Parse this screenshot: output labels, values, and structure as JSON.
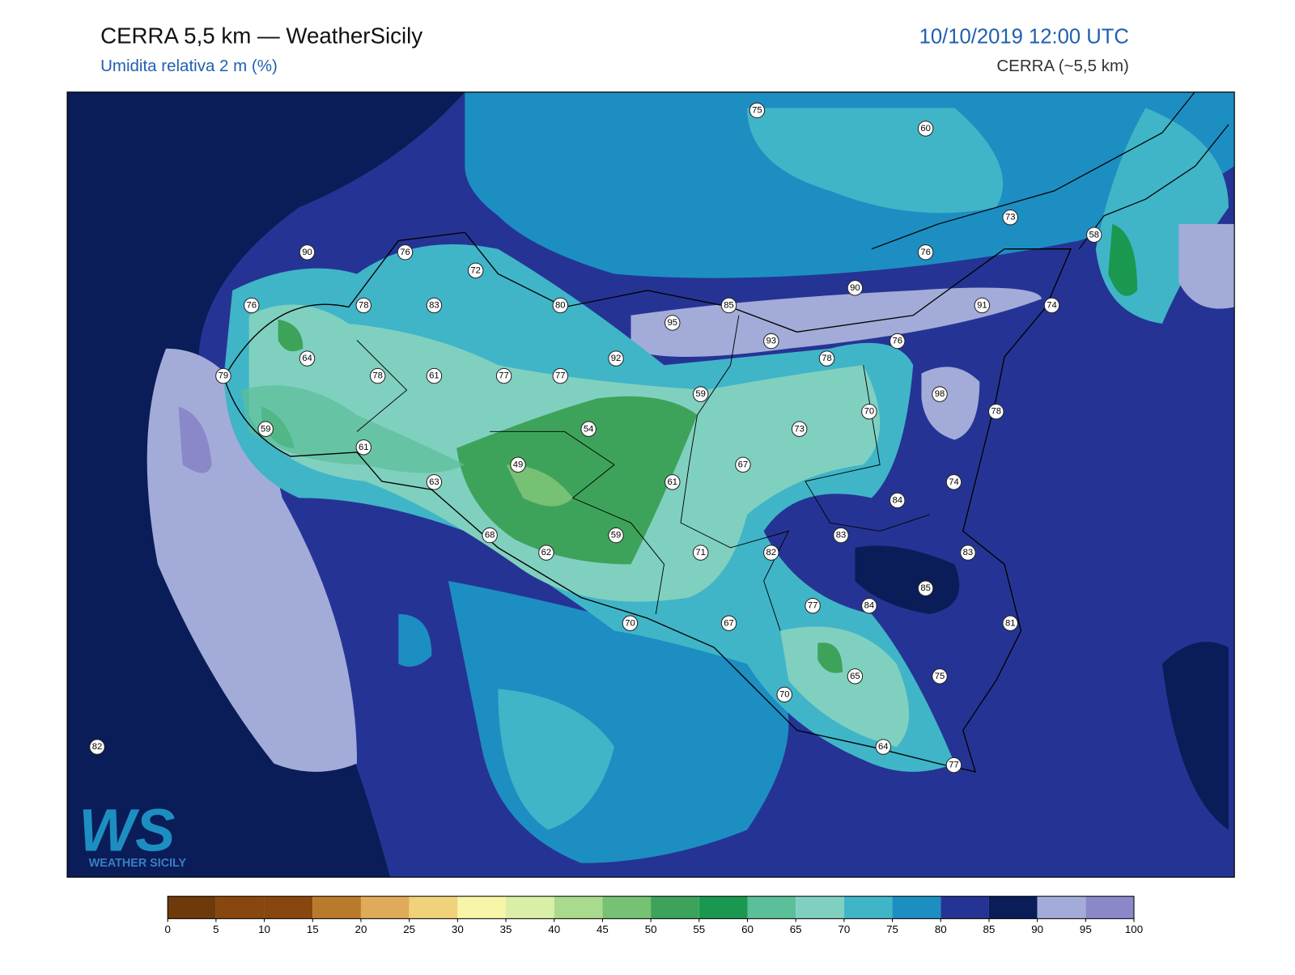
{
  "header": {
    "title": "CERRA 5,5 km — WeatherSicily",
    "subtitle": "Umidita relativa 2 m (%)",
    "datetime": "10/10/2019 12:00 UTC",
    "model": "CERRA (~5,5 km)"
  },
  "map": {
    "points": [
      75,
      60,
      73,
      58,
      90,
      76,
      72,
      76,
      90,
      76,
      78,
      83,
      80,
      85,
      91,
      74,
      95,
      93,
      76,
      92,
      78,
      64,
      79,
      78,
      61,
      77,
      77,
      59,
      98,
      70,
      78,
      59,
      54,
      73,
      61,
      49,
      67,
      63,
      61,
      74,
      84,
      68,
      59,
      83,
      62,
      71,
      82,
      83,
      85,
      77,
      84,
      70,
      67,
      81,
      65,
      75,
      70,
      64,
      77,
      82
    ]
  },
  "colorbar": {
    "ticks": [
      0,
      5,
      10,
      15,
      20,
      25,
      30,
      35,
      40,
      45,
      50,
      55,
      60,
      65,
      70,
      75,
      80,
      85,
      90,
      95,
      100
    ],
    "colors": [
      "#6f3a0a",
      "#87470f",
      "#87470f",
      "#b97a2c",
      "#dfab5a",
      "#f0d27a",
      "#f7f5a8",
      "#d9efa6",
      "#a9da8d",
      "#76c174",
      "#3ea35a",
      "#1a9850",
      "#5bbf9a",
      "#80d0c0",
      "#40b5c8",
      "#1d8ec2",
      "#253494",
      "#0a1d58",
      "#a3acd8",
      "#8a88c8"
    ]
  },
  "logo": {
    "mark": "WS",
    "text": "WEATHER SICILY"
  }
}
